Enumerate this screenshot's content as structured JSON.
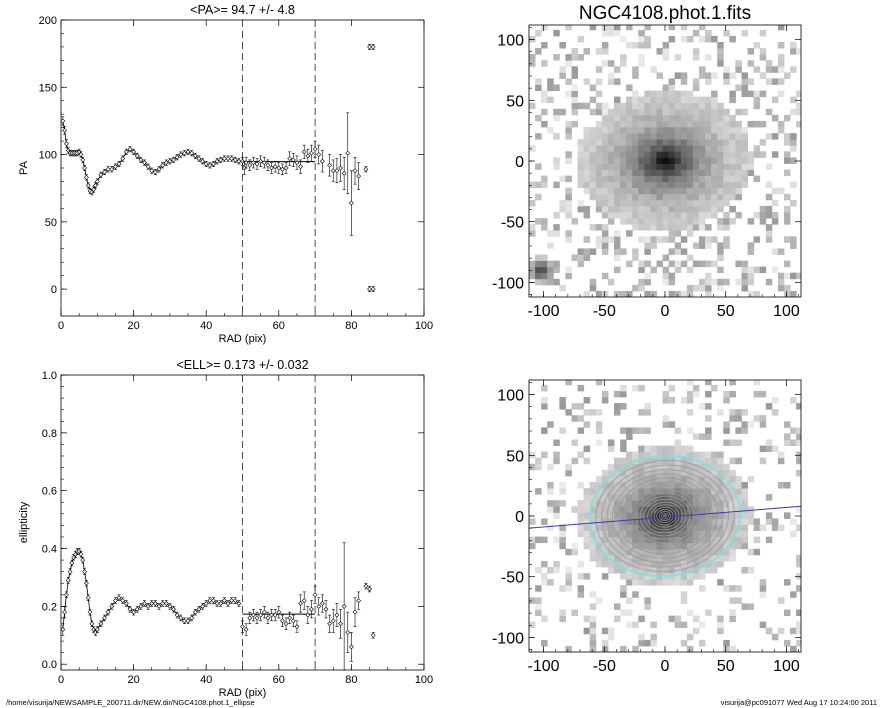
{
  "footer": {
    "path": "/home/visurija/NEWSAMPLE_200711.dir/NEW.dir/NGC4108.phot.1_ellipse",
    "stamp": "visurija@pc091077  Wed Aug 17 10:24:00 2011"
  },
  "colors": {
    "contour": "#9a9a9a",
    "outer_ring": "#7fe0e0",
    "major_axis": "#3b3bb0"
  },
  "chart_data": [
    {
      "type": "scatter",
      "title": "<PA>=  94.7 +/-   4.8",
      "xlabel": "RAD (pix)",
      "ylabel": "PA",
      "xlim": [
        0,
        100
      ],
      "ylim": [
        -20,
        200
      ],
      "xticks": [
        "0",
        "20",
        "40",
        "60",
        "80",
        "100"
      ],
      "yticks": [
        "0",
        "50",
        "100",
        "150",
        "200"
      ],
      "vlines": [
        50,
        70
      ],
      "mean_line": {
        "x": [
          50,
          70
        ],
        "y": 94.7
      },
      "points": [
        [
          0.5,
          125,
          3
        ],
        [
          1,
          118,
          3
        ],
        [
          1.5,
          108,
          3
        ],
        [
          2,
          103,
          2
        ],
        [
          2.5,
          101,
          2
        ],
        [
          3,
          101,
          2
        ],
        [
          3.5,
          101,
          2
        ],
        [
          4,
          101,
          2
        ],
        [
          4.5,
          101,
          2
        ],
        [
          5,
          102,
          2
        ],
        [
          5.5,
          100,
          2
        ],
        [
          6,
          96,
          2
        ],
        [
          6.5,
          90,
          2
        ],
        [
          7,
          83,
          2
        ],
        [
          7.5,
          77,
          2
        ],
        [
          8,
          73,
          2
        ],
        [
          8.5,
          72,
          2
        ],
        [
          9,
          74,
          2
        ],
        [
          9.5,
          77,
          2
        ],
        [
          10,
          80,
          2
        ],
        [
          11,
          85,
          2
        ],
        [
          12,
          87,
          2
        ],
        [
          13,
          89,
          2
        ],
        [
          14,
          89,
          2
        ],
        [
          15,
          91,
          2
        ],
        [
          16,
          93,
          2
        ],
        [
          17,
          97,
          2
        ],
        [
          18,
          102,
          2
        ],
        [
          19,
          104,
          2
        ],
        [
          20,
          102,
          2
        ],
        [
          21,
          99,
          2
        ],
        [
          22,
          96,
          2
        ],
        [
          23,
          94,
          2
        ],
        [
          24,
          91,
          2
        ],
        [
          25,
          88,
          2
        ],
        [
          26,
          87,
          2
        ],
        [
          27,
          89,
          2
        ],
        [
          28,
          92,
          2
        ],
        [
          29,
          94,
          2
        ],
        [
          30,
          95,
          2
        ],
        [
          31,
          96,
          2
        ],
        [
          32,
          98,
          2
        ],
        [
          33,
          100,
          2
        ],
        [
          34,
          101,
          2
        ],
        [
          35,
          102,
          2
        ],
        [
          36,
          101,
          2
        ],
        [
          37,
          99,
          2
        ],
        [
          38,
          97,
          2
        ],
        [
          39,
          95,
          2
        ],
        [
          40,
          93,
          2
        ],
        [
          41,
          92,
          2
        ],
        [
          42,
          93,
          2
        ],
        [
          43,
          95,
          2
        ],
        [
          44,
          96,
          2
        ],
        [
          45,
          97,
          2
        ],
        [
          46,
          97,
          2
        ],
        [
          47,
          97,
          2
        ],
        [
          48,
          96,
          2
        ],
        [
          49,
          95,
          2
        ],
        [
          50,
          95,
          3
        ],
        [
          50.5,
          90,
          5
        ],
        [
          51,
          94,
          4
        ],
        [
          52,
          92,
          4
        ],
        [
          53,
          94,
          4
        ],
        [
          54,
          93,
          4
        ],
        [
          55,
          95,
          4
        ],
        [
          56,
          94,
          4
        ],
        [
          57,
          92,
          4
        ],
        [
          58,
          90,
          4
        ],
        [
          59,
          91,
          4
        ],
        [
          60,
          90,
          4
        ],
        [
          61,
          89,
          4
        ],
        [
          62,
          90,
          4
        ],
        [
          63,
          97,
          5
        ],
        [
          64,
          96,
          5
        ],
        [
          65,
          94,
          5
        ],
        [
          66,
          91,
          5
        ],
        [
          67,
          102,
          5
        ],
        [
          68,
          99,
          5
        ],
        [
          69,
          101,
          6
        ],
        [
          70,
          104,
          6
        ],
        [
          71,
          100,
          7
        ],
        [
          72,
          95,
          8
        ],
        [
          74,
          92,
          8
        ],
        [
          75,
          88,
          8
        ],
        [
          76,
          88,
          9
        ],
        [
          77,
          90,
          10
        ],
        [
          78,
          86,
          12
        ],
        [
          79,
          101,
          30
        ],
        [
          80,
          64,
          24
        ],
        [
          81,
          88,
          10
        ],
        [
          82,
          84,
          10
        ],
        [
          84,
          89,
          2
        ],
        [
          85,
          180,
          2
        ],
        [
          86,
          180,
          2
        ],
        [
          85,
          0,
          2
        ],
        [
          86,
          0,
          2
        ]
      ]
    },
    {
      "type": "scatter",
      "title": "<ELL>= 0.173 +/-  0.032",
      "xlabel": "RAD (pix)",
      "ylabel": "ellipticity",
      "xlim": [
        0,
        100
      ],
      "ylim": [
        -0.02,
        1.0
      ],
      "xticks": [
        "0",
        "20",
        "40",
        "60",
        "80",
        "100"
      ],
      "yticks": [
        "0.0",
        "0.2",
        "0.4",
        "0.6",
        "0.8",
        "1.0"
      ],
      "vlines": [
        50,
        70
      ],
      "mean_line": {
        "x": [
          50,
          70
        ],
        "y": 0.173
      },
      "points": [
        [
          0.5,
          0.12,
          0.02
        ],
        [
          1,
          0.18,
          0.02
        ],
        [
          1.5,
          0.24,
          0.01
        ],
        [
          2,
          0.29,
          0.01
        ],
        [
          2.5,
          0.32,
          0.01
        ],
        [
          3,
          0.35,
          0.01
        ],
        [
          3.5,
          0.37,
          0.01
        ],
        [
          4,
          0.38,
          0.01
        ],
        [
          4.5,
          0.39,
          0.01
        ],
        [
          5,
          0.39,
          0.01
        ],
        [
          5.5,
          0.38,
          0.01
        ],
        [
          6,
          0.36,
          0.01
        ],
        [
          6.5,
          0.32,
          0.01
        ],
        [
          7,
          0.28,
          0.01
        ],
        [
          7.5,
          0.23,
          0.01
        ],
        [
          8,
          0.18,
          0.01
        ],
        [
          8.5,
          0.14,
          0.01
        ],
        [
          9,
          0.12,
          0.01
        ],
        [
          9.5,
          0.11,
          0.01
        ],
        [
          10,
          0.12,
          0.01
        ],
        [
          11,
          0.14,
          0.01
        ],
        [
          12,
          0.16,
          0.01
        ],
        [
          13,
          0.18,
          0.01
        ],
        [
          14,
          0.2,
          0.01
        ],
        [
          15,
          0.22,
          0.01
        ],
        [
          16,
          0.23,
          0.01
        ],
        [
          17,
          0.22,
          0.01
        ],
        [
          18,
          0.21,
          0.01
        ],
        [
          19,
          0.19,
          0.01
        ],
        [
          20,
          0.18,
          0.01
        ],
        [
          21,
          0.19,
          0.01
        ],
        [
          22,
          0.2,
          0.01
        ],
        [
          23,
          0.21,
          0.01
        ],
        [
          24,
          0.2,
          0.01
        ],
        [
          25,
          0.21,
          0.01
        ],
        [
          26,
          0.21,
          0.01
        ],
        [
          27,
          0.2,
          0.01
        ],
        [
          28,
          0.21,
          0.01
        ],
        [
          29,
          0.21,
          0.01
        ],
        [
          30,
          0.2,
          0.01
        ],
        [
          31,
          0.19,
          0.01
        ],
        [
          32,
          0.17,
          0.01
        ],
        [
          33,
          0.16,
          0.01
        ],
        [
          34,
          0.15,
          0.01
        ],
        [
          35,
          0.15,
          0.01
        ],
        [
          36,
          0.16,
          0.01
        ],
        [
          37,
          0.18,
          0.01
        ],
        [
          38,
          0.19,
          0.01
        ],
        [
          39,
          0.2,
          0.01
        ],
        [
          40,
          0.21,
          0.01
        ],
        [
          41,
          0.22,
          0.01
        ],
        [
          42,
          0.22,
          0.01
        ],
        [
          43,
          0.21,
          0.01
        ],
        [
          44,
          0.21,
          0.01
        ],
        [
          45,
          0.22,
          0.01
        ],
        [
          46,
          0.21,
          0.01
        ],
        [
          47,
          0.22,
          0.01
        ],
        [
          48,
          0.22,
          0.01
        ],
        [
          49,
          0.21,
          0.01
        ],
        [
          50,
          0.13,
          0.02
        ],
        [
          51,
          0.12,
          0.02
        ],
        [
          52,
          0.16,
          0.02
        ],
        [
          53,
          0.17,
          0.02
        ],
        [
          54,
          0.16,
          0.02
        ],
        [
          55,
          0.17,
          0.02
        ],
        [
          56,
          0.18,
          0.02
        ],
        [
          57,
          0.16,
          0.02
        ],
        [
          58,
          0.17,
          0.02
        ],
        [
          59,
          0.17,
          0.02
        ],
        [
          60,
          0.18,
          0.02
        ],
        [
          61,
          0.15,
          0.02
        ],
        [
          62,
          0.14,
          0.02
        ],
        [
          63,
          0.16,
          0.02
        ],
        [
          64,
          0.15,
          0.02
        ],
        [
          65,
          0.13,
          0.02
        ],
        [
          66,
          0.21,
          0.03
        ],
        [
          67,
          0.22,
          0.03
        ],
        [
          68,
          0.17,
          0.03
        ],
        [
          69,
          0.19,
          0.03
        ],
        [
          70,
          0.24,
          0.03
        ],
        [
          71,
          0.2,
          0.03
        ],
        [
          72,
          0.21,
          0.03
        ],
        [
          73,
          0.19,
          0.03
        ],
        [
          74,
          0.14,
          0.03
        ],
        [
          75,
          0.15,
          0.04
        ],
        [
          76,
          0.17,
          0.04
        ],
        [
          77,
          0.14,
          0.05
        ],
        [
          78,
          0.2,
          0.22
        ],
        [
          79,
          0.11,
          0.07
        ],
        [
          80,
          0.06,
          0.05
        ],
        [
          81,
          0.18,
          0.05
        ],
        [
          82,
          0.22,
          0.03
        ],
        [
          84,
          0.27,
          0.01
        ],
        [
          85,
          0.26,
          0.01
        ],
        [
          86,
          0.1,
          0.01
        ]
      ]
    },
    {
      "type": "heatmap",
      "title": "NGC4108.phot.1.fits",
      "xlim": [
        -112,
        112
      ],
      "ylim": [
        -112,
        112
      ],
      "xticks": [
        "-100",
        "-50",
        "0",
        "50",
        "100"
      ],
      "yticks": [
        "-100",
        "-50",
        "0",
        "50",
        "100"
      ],
      "galaxy": {
        "cx": 0,
        "cy": 0,
        "a": 62,
        "b": 50,
        "pa": 94.7
      },
      "companion": {
        "x": -102,
        "y": -90
      }
    },
    {
      "type": "heatmap",
      "title": "",
      "xlim": [
        -112,
        112
      ],
      "ylim": [
        -112,
        112
      ],
      "xticks": [
        "-100",
        "-50",
        "0",
        "50",
        "100"
      ],
      "yticks": [
        "-100",
        "-50",
        "0",
        "50",
        "100"
      ],
      "galaxy": {
        "cx": 0,
        "cy": 0,
        "a": 62,
        "b": 50,
        "pa": 94.7
      },
      "contours": {
        "count": 20,
        "max_a": 62,
        "ratio": 0.8
      },
      "major_axis": {
        "x": [
          -112,
          112
        ],
        "y": [
          -10,
          8
        ]
      }
    }
  ]
}
